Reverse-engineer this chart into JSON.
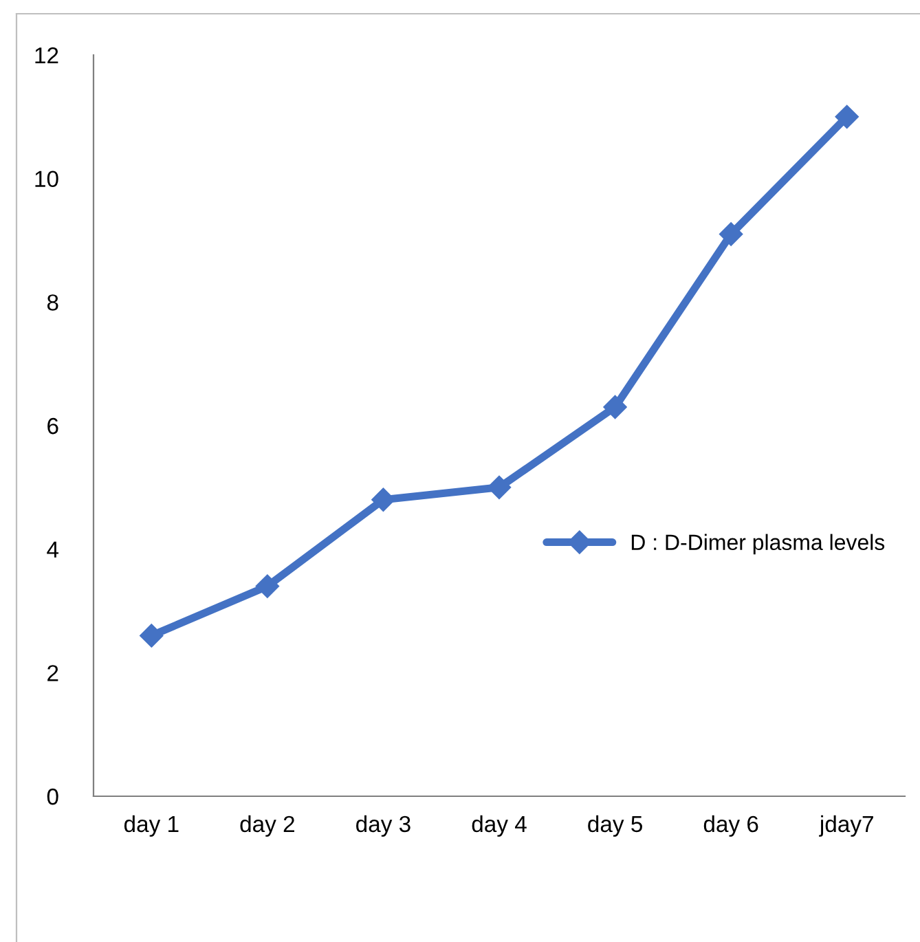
{
  "chart_data": {
    "type": "line",
    "categories": [
      "day 1",
      "day 2",
      "day 3",
      "day 4",
      "day 5",
      "day 6",
      "jday7"
    ],
    "series": [
      {
        "name": "D : D-Dimer plasma levels",
        "color": "#4472c4",
        "values": [
          2.6,
          3.4,
          4.8,
          5.0,
          6.3,
          9.1,
          11
        ]
      }
    ],
    "ylim": [
      0,
      12
    ],
    "yticks": [
      0,
      2,
      4,
      6,
      8,
      10,
      12
    ],
    "grid": false,
    "legend": "right",
    "marker": "diamond",
    "line_style": "solid"
  }
}
